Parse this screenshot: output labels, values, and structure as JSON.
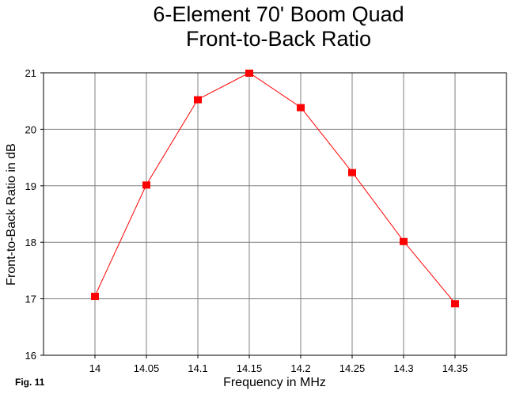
{
  "chart_data": {
    "type": "line",
    "title_line1": "6-Element 70' Boom Quad",
    "title_line2": "Front-to-Back Ratio",
    "xlabel": "Frequency in MHz",
    "ylabel": "Front-to-Back Ratio in dB",
    "x": [
      14,
      14.05,
      14.1,
      14.15,
      14.2,
      14.25,
      14.3,
      14.35
    ],
    "x_tick_labels": [
      "14",
      "14.05",
      "14.1",
      "14.15",
      "14.2",
      "14.25",
      "14.3",
      "14.35"
    ],
    "y_ticks": [
      16,
      17,
      18,
      19,
      20,
      21
    ],
    "y_tick_labels": [
      "16",
      "17",
      "18",
      "19",
      "20",
      "21"
    ],
    "xlim": [
      13.95,
      14.4
    ],
    "ylim": [
      16,
      21
    ],
    "grid": true,
    "series": [
      {
        "values": [
          17.05,
          19.02,
          20.53,
          21.0,
          20.39,
          19.24,
          18.02,
          16.92
        ],
        "color": "#ff0000"
      }
    ],
    "colors": {
      "line": "#ff0000",
      "marker": "#ff0000",
      "grid": "#808080",
      "axis": "#000000"
    }
  },
  "figure_label": "Fig. 11"
}
